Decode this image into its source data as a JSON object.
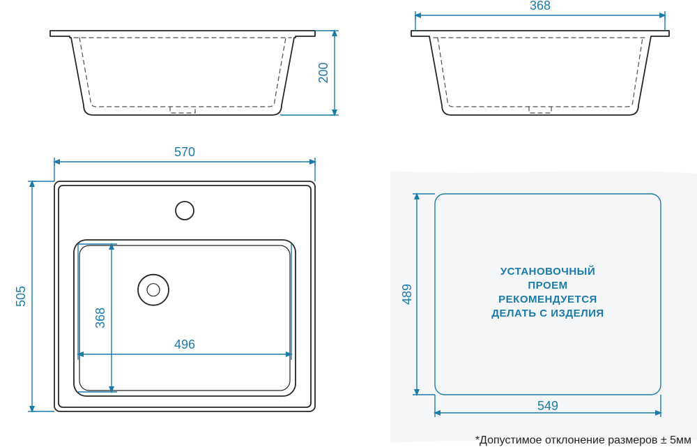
{
  "colors": {
    "dim": "#1a7aa8",
    "outline": "#262626",
    "dash": "#4d4d4d",
    "bg": "#ffffff",
    "paper": "#f5f6f7"
  },
  "stroke": {
    "outline_w": 1.8,
    "dash_w": 1.2,
    "dim_w": 1.4,
    "dash_pattern": "6 5"
  },
  "font": {
    "dim_size": 18,
    "note_size": 15,
    "tol_size": 16
  },
  "dims": {
    "width_570": "570",
    "height_200": "200",
    "depth_368_top": "368",
    "height_505": "505",
    "bowl_w_496": "496",
    "bowl_h_368": "368",
    "cutout_w_549": "549",
    "cutout_h_489": "489"
  },
  "note": {
    "l1": "УСТАНОВОЧНЫЙ",
    "l2": "ПРОЕМ",
    "l3": "РЕКОМЕНДУЕТСЯ",
    "l4": "ДЕЛАТЬ С ИЗДЕЛИЯ"
  },
  "tolerance": "*Допустимое отклонение размеров  ± 5мм"
}
